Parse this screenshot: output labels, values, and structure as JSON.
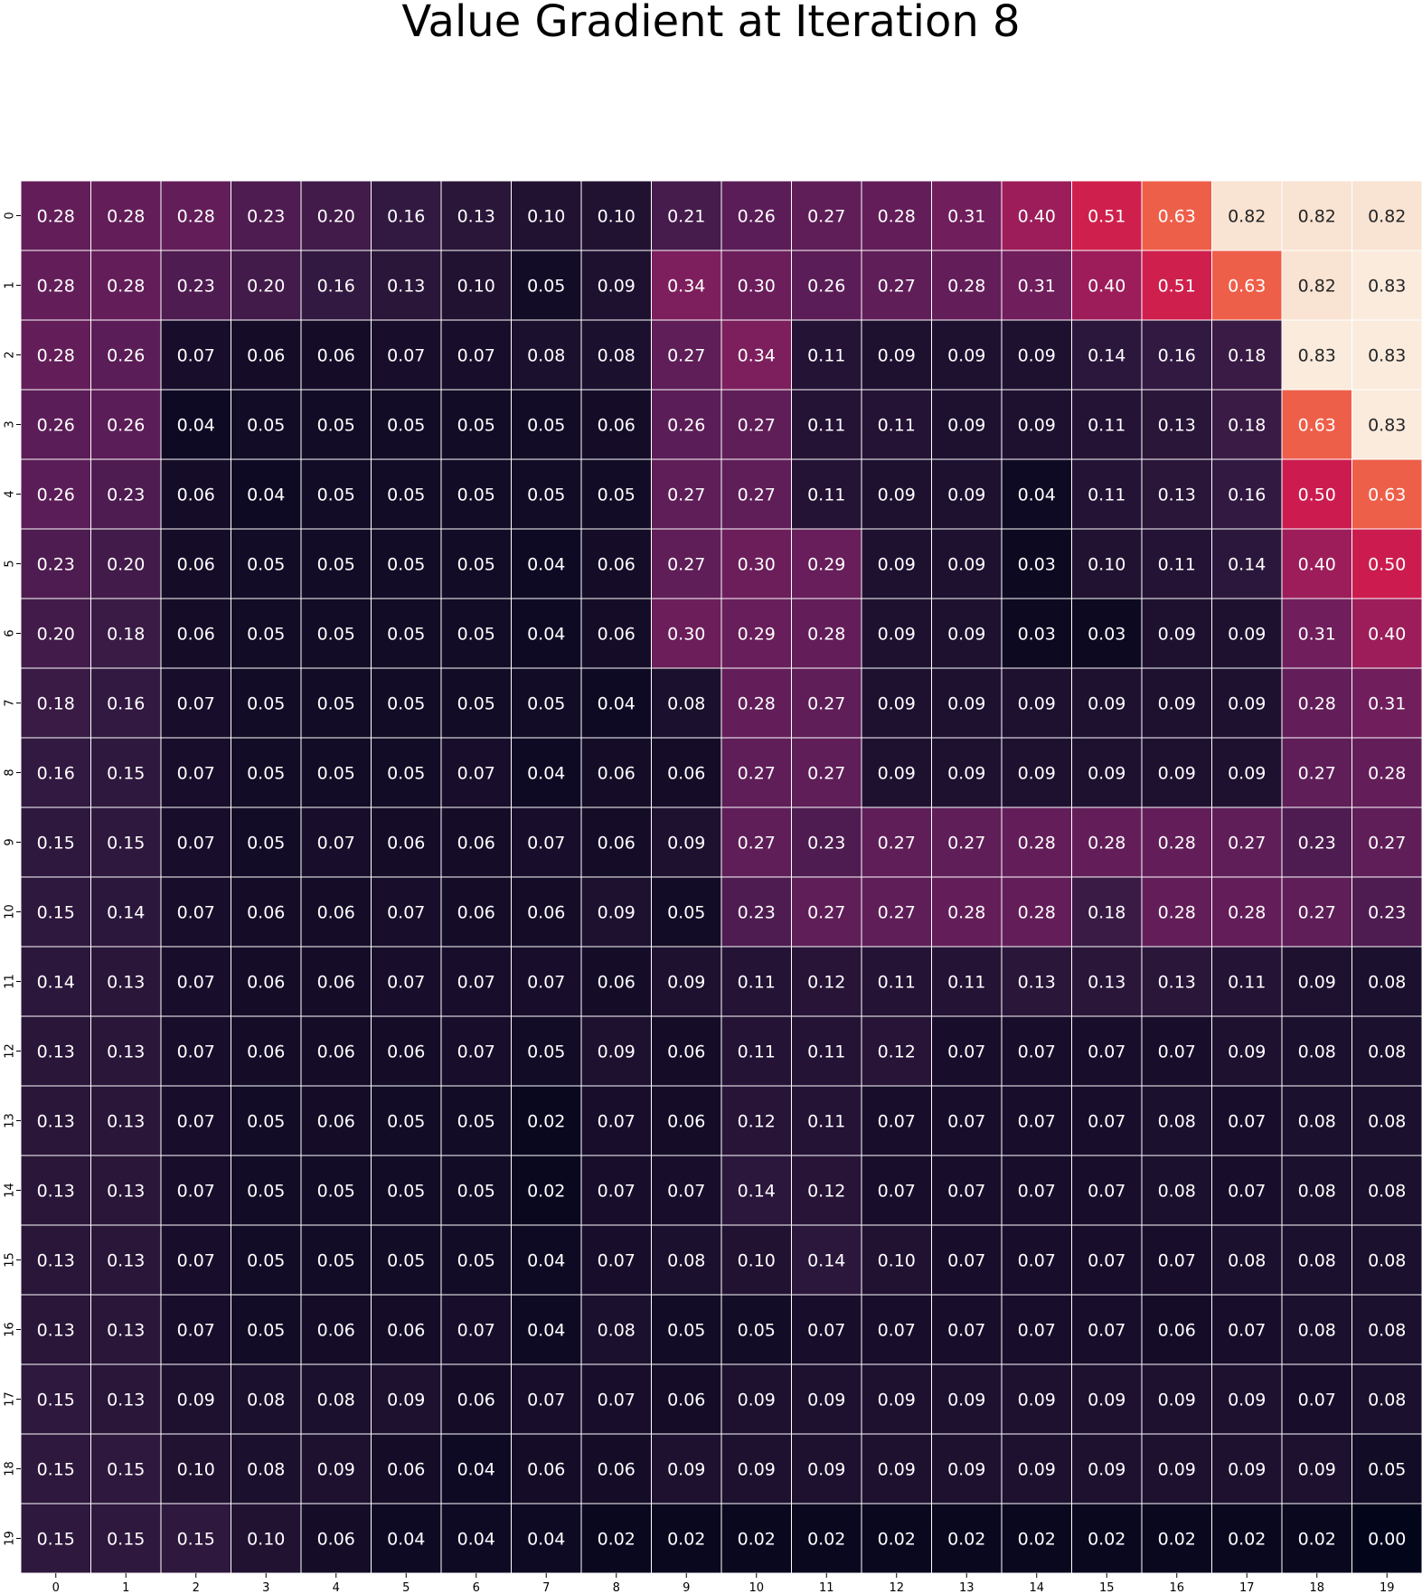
{
  "chart_data": {
    "type": "heatmap",
    "title": "Value Gradient at Iteration 8",
    "xlabel": "",
    "ylabel": "",
    "x_ticks": [
      "0",
      "1",
      "2",
      "3",
      "4",
      "5",
      "6",
      "7",
      "8",
      "9",
      "10",
      "11",
      "12",
      "13",
      "14",
      "15",
      "16",
      "17",
      "18",
      "19"
    ],
    "y_ticks": [
      "0",
      "1",
      "2",
      "3",
      "4",
      "5",
      "6",
      "7",
      "8",
      "9",
      "10",
      "11",
      "12",
      "13",
      "14",
      "15",
      "16",
      "17",
      "18",
      "19"
    ],
    "value_range": [
      0,
      0.83
    ],
    "colormap": "rocket",
    "colorbar": false,
    "values": [
      [
        0.28,
        0.28,
        0.28,
        0.23,
        0.2,
        0.16,
        0.13,
        0.1,
        0.1,
        0.21,
        0.26,
        0.27,
        0.28,
        0.31,
        0.4,
        0.51,
        0.63,
        0.82,
        0.82,
        0.82
      ],
      [
        0.28,
        0.28,
        0.23,
        0.2,
        0.16,
        0.13,
        0.1,
        0.05,
        0.09,
        0.34,
        0.3,
        0.26,
        0.27,
        0.28,
        0.31,
        0.4,
        0.51,
        0.63,
        0.82,
        0.83
      ],
      [
        0.28,
        0.26,
        0.07,
        0.06,
        0.06,
        0.07,
        0.07,
        0.08,
        0.08,
        0.27,
        0.34,
        0.11,
        0.09,
        0.09,
        0.09,
        0.14,
        0.16,
        0.18,
        0.83,
        0.83
      ],
      [
        0.26,
        0.26,
        0.04,
        0.05,
        0.05,
        0.05,
        0.05,
        0.05,
        0.06,
        0.26,
        0.27,
        0.11,
        0.11,
        0.09,
        0.09,
        0.11,
        0.13,
        0.18,
        0.63,
        0.83
      ],
      [
        0.26,
        0.23,
        0.06,
        0.04,
        0.05,
        0.05,
        0.05,
        0.05,
        0.05,
        0.27,
        0.27,
        0.11,
        0.09,
        0.09,
        0.04,
        0.11,
        0.13,
        0.16,
        0.5,
        0.63
      ],
      [
        0.23,
        0.2,
        0.06,
        0.05,
        0.05,
        0.05,
        0.05,
        0.04,
        0.06,
        0.27,
        0.3,
        0.29,
        0.09,
        0.09,
        0.03,
        0.1,
        0.11,
        0.14,
        0.4,
        0.5
      ],
      [
        0.2,
        0.18,
        0.06,
        0.05,
        0.05,
        0.05,
        0.05,
        0.04,
        0.06,
        0.3,
        0.29,
        0.28,
        0.09,
        0.09,
        0.03,
        0.03,
        0.09,
        0.09,
        0.31,
        0.4
      ],
      [
        0.18,
        0.16,
        0.07,
        0.05,
        0.05,
        0.05,
        0.05,
        0.05,
        0.04,
        0.08,
        0.28,
        0.27,
        0.09,
        0.09,
        0.09,
        0.09,
        0.09,
        0.09,
        0.28,
        0.31
      ],
      [
        0.16,
        0.15,
        0.07,
        0.05,
        0.05,
        0.05,
        0.07,
        0.04,
        0.06,
        0.06,
        0.27,
        0.27,
        0.09,
        0.09,
        0.09,
        0.09,
        0.09,
        0.09,
        0.27,
        0.28
      ],
      [
        0.15,
        0.15,
        0.07,
        0.05,
        0.07,
        0.06,
        0.06,
        0.07,
        0.06,
        0.09,
        0.27,
        0.23,
        0.27,
        0.27,
        0.28,
        0.28,
        0.28,
        0.27,
        0.23,
        0.27
      ],
      [
        0.15,
        0.14,
        0.07,
        0.06,
        0.06,
        0.07,
        0.06,
        0.06,
        0.09,
        0.05,
        0.23,
        0.27,
        0.27,
        0.28,
        0.28,
        0.18,
        0.28,
        0.28,
        0.27,
        0.23
      ],
      [
        0.14,
        0.13,
        0.07,
        0.06,
        0.06,
        0.07,
        0.07,
        0.07,
        0.06,
        0.09,
        0.11,
        0.12,
        0.11,
        0.11,
        0.13,
        0.13,
        0.13,
        0.11,
        0.09,
        0.08
      ],
      [
        0.13,
        0.13,
        0.07,
        0.06,
        0.06,
        0.06,
        0.07,
        0.05,
        0.09,
        0.06,
        0.11,
        0.11,
        0.12,
        0.07,
        0.07,
        0.07,
        0.07,
        0.09,
        0.08,
        0.08
      ],
      [
        0.13,
        0.13,
        0.07,
        0.05,
        0.06,
        0.05,
        0.05,
        0.02,
        0.07,
        0.06,
        0.12,
        0.11,
        0.07,
        0.07,
        0.07,
        0.07,
        0.08,
        0.07,
        0.08,
        0.08
      ],
      [
        0.13,
        0.13,
        0.07,
        0.05,
        0.05,
        0.05,
        0.05,
        0.02,
        0.07,
        0.07,
        0.14,
        0.12,
        0.07,
        0.07,
        0.07,
        0.07,
        0.08,
        0.07,
        0.08,
        0.08
      ],
      [
        0.13,
        0.13,
        0.07,
        0.05,
        0.05,
        0.05,
        0.05,
        0.04,
        0.07,
        0.08,
        0.1,
        0.14,
        0.1,
        0.07,
        0.07,
        0.07,
        0.07,
        0.08,
        0.08,
        0.08
      ],
      [
        0.13,
        0.13,
        0.07,
        0.05,
        0.06,
        0.06,
        0.07,
        0.04,
        0.08,
        0.05,
        0.05,
        0.07,
        0.07,
        0.07,
        0.07,
        0.07,
        0.06,
        0.07,
        0.08,
        0.08
      ],
      [
        0.15,
        0.13,
        0.09,
        0.08,
        0.08,
        0.09,
        0.06,
        0.07,
        0.07,
        0.06,
        0.09,
        0.09,
        0.09,
        0.09,
        0.09,
        0.09,
        0.09,
        0.09,
        0.07,
        0.08
      ],
      [
        0.15,
        0.15,
        0.1,
        0.08,
        0.09,
        0.06,
        0.04,
        0.06,
        0.06,
        0.09,
        0.09,
        0.09,
        0.09,
        0.09,
        0.09,
        0.09,
        0.09,
        0.09,
        0.09,
        0.05
      ],
      [
        0.15,
        0.15,
        0.15,
        0.1,
        0.06,
        0.04,
        0.04,
        0.04,
        0.02,
        0.02,
        0.02,
        0.02,
        0.02,
        0.02,
        0.02,
        0.02,
        0.02,
        0.02,
        0.02,
        0.0
      ]
    ]
  }
}
